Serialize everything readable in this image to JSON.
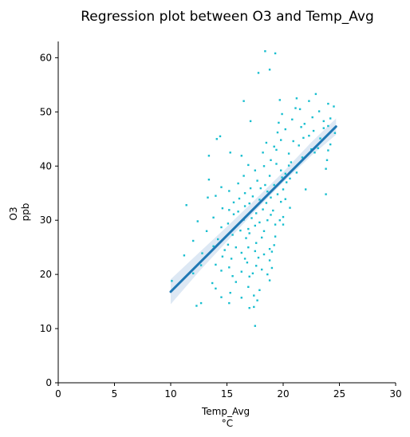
{
  "chart_data": {
    "type": "scatter",
    "title": "Regression plot between O3 and Temp_Avg",
    "xlabel": [
      "Temp_Avg",
      "°C"
    ],
    "ylabel": [
      "O3",
      "ppb"
    ],
    "xlim": [
      0,
      30
    ],
    "ylim": [
      0,
      63
    ],
    "xticks": [
      "0",
      "5",
      "10",
      "15",
      "20",
      "25",
      "30"
    ],
    "yticks": [
      "0",
      "10",
      "20",
      "30",
      "40",
      "50",
      "60"
    ],
    "grid": false,
    "point_color": "#17becf",
    "line_color": "#1f77b4",
    "band_color": "#c6d8ec",
    "regression": {
      "x": [
        10.0,
        24.7
      ],
      "y": [
        16.8,
        47.3
      ]
    },
    "confidence_band": {
      "x": [
        10.0,
        12.5,
        15.0,
        17.5,
        20.0,
        22.5,
        24.7
      ],
      "lower": [
        14.5,
        20.5,
        26.1,
        31.7,
        37.0,
        41.9,
        45.8
      ],
      "upper": [
        19.1,
        24.0,
        28.8,
        33.8,
        38.9,
        44.4,
        48.8
      ]
    },
    "points": [
      [
        18.4,
        61.2
      ],
      [
        19.3,
        60.8
      ],
      [
        18.8,
        57.8
      ],
      [
        17.8,
        57.2
      ],
      [
        16.5,
        52.0
      ],
      [
        19.7,
        52.2
      ],
      [
        22.9,
        53.3
      ],
      [
        21.2,
        52.5
      ],
      [
        22.3,
        52.0
      ],
      [
        24.0,
        51.5
      ],
      [
        24.5,
        51.0
      ],
      [
        21.5,
        50.5
      ],
      [
        21.1,
        50.7
      ],
      [
        23.2,
        50.1
      ],
      [
        19.9,
        49.6
      ],
      [
        22.6,
        49.0
      ],
      [
        24.2,
        48.8
      ],
      [
        20.8,
        48.6
      ],
      [
        23.6,
        48.3
      ],
      [
        17.1,
        48.3
      ],
      [
        19.6,
        48.0
      ],
      [
        21.9,
        47.8
      ],
      [
        24.0,
        47.4
      ],
      [
        23.6,
        47.0
      ],
      [
        20.2,
        46.8
      ],
      [
        22.7,
        46.5
      ],
      [
        19.5,
        46.2
      ],
      [
        24.6,
        46.1
      ],
      [
        22.3,
        45.6
      ],
      [
        14.4,
        45.5
      ],
      [
        14.1,
        45.0
      ],
      [
        21.8,
        45.2
      ],
      [
        23.3,
        45.1
      ],
      [
        19.8,
        44.8
      ],
      [
        18.5,
        44.3
      ],
      [
        24.2,
        44.0
      ],
      [
        21.4,
        43.8
      ],
      [
        19.2,
        43.6
      ],
      [
        23.1,
        43.3
      ],
      [
        22.5,
        43.1
      ],
      [
        24.0,
        42.9
      ],
      [
        18.2,
        42.5
      ],
      [
        15.3,
        42.5
      ],
      [
        20.5,
        42.3
      ],
      [
        13.4,
        41.9
      ],
      [
        16.3,
        41.9
      ],
      [
        21.7,
        41.6
      ],
      [
        18.9,
        41.1
      ],
      [
        23.9,
        41.1
      ],
      [
        19.4,
        40.4
      ],
      [
        20.7,
        40.7
      ],
      [
        16.9,
        40.2
      ],
      [
        18.3,
        40.0
      ],
      [
        23.8,
        39.5
      ],
      [
        17.5,
        39.2
      ],
      [
        19.8,
        39.2
      ],
      [
        21.2,
        38.8
      ],
      [
        20.2,
        38.6
      ],
      [
        18.8,
        38.2
      ],
      [
        16.5,
        38.2
      ],
      [
        19.9,
        37.9
      ],
      [
        20.6,
        37.7
      ],
      [
        13.4,
        37.5
      ],
      [
        17.7,
        37.3
      ],
      [
        20.3,
        37.0
      ],
      [
        16.0,
        36.8
      ],
      [
        18.4,
        36.5
      ],
      [
        19.2,
        36.5
      ],
      [
        14.5,
        36.1
      ],
      [
        17.1,
        35.9
      ],
      [
        20.0,
        35.7
      ],
      [
        22.0,
        35.7
      ],
      [
        15.2,
        35.4
      ],
      [
        18.6,
        35.3
      ],
      [
        16.6,
        35.0
      ],
      [
        19.5,
        34.8
      ],
      [
        23.8,
        34.8
      ],
      [
        14.0,
        34.5
      ],
      [
        17.3,
        34.4
      ],
      [
        18.9,
        34.2
      ],
      [
        13.3,
        34.2
      ],
      [
        16.1,
        34.0
      ],
      [
        17.9,
        33.8
      ],
      [
        20.2,
        33.9
      ],
      [
        19.8,
        33.4
      ],
      [
        15.6,
        33.3
      ],
      [
        18.5,
        33.2
      ],
      [
        17.0,
        33.1
      ],
      [
        11.4,
        32.8
      ],
      [
        16.6,
        32.6
      ],
      [
        20.6,
        32.3
      ],
      [
        14.6,
        32.2
      ],
      [
        18.2,
        32.0
      ],
      [
        15.2,
        31.9
      ],
      [
        19.1,
        31.8
      ],
      [
        16.0,
        31.6
      ],
      [
        17.6,
        31.3
      ],
      [
        15.6,
        31.1
      ],
      [
        18.9,
        31.0
      ],
      [
        20.0,
        30.6
      ],
      [
        13.8,
        30.5
      ],
      [
        17.2,
        30.4
      ],
      [
        16.5,
        30.1
      ],
      [
        18.6,
        30.0
      ],
      [
        19.7,
        30.0
      ],
      [
        12.4,
        29.8
      ],
      [
        17.9,
        29.6
      ],
      [
        15.1,
        29.4
      ],
      [
        19.3,
        29.2
      ],
      [
        20.0,
        29.2
      ],
      [
        17.5,
        29.0
      ],
      [
        14.5,
        28.7
      ],
      [
        16.9,
        28.4
      ],
      [
        16.2,
        28.1
      ],
      [
        18.3,
        28.0
      ],
      [
        13.2,
        28.0
      ],
      [
        17.0,
        27.6
      ],
      [
        15.5,
        27.3
      ],
      [
        19.3,
        27.0
      ],
      [
        18.1,
        26.8
      ],
      [
        16.7,
        26.7
      ],
      [
        14.2,
        26.5
      ],
      [
        12.0,
        26.2
      ],
      [
        17.6,
        25.8
      ],
      [
        15.1,
        25.5
      ],
      [
        19.2,
        25.4
      ],
      [
        13.8,
        25.2
      ],
      [
        15.8,
        25.0
      ],
      [
        16.9,
        25.0
      ],
      [
        18.8,
        24.7
      ],
      [
        14.8,
        24.5
      ],
      [
        17.5,
        24.3
      ],
      [
        19.0,
        24.2
      ],
      [
        16.3,
        24.0
      ],
      [
        12.8,
        23.9
      ],
      [
        18.3,
        23.7
      ],
      [
        11.2,
        23.5
      ],
      [
        14.6,
        23.3
      ],
      [
        17.8,
        23.1
      ],
      [
        15.4,
        22.9
      ],
      [
        18.8,
        22.6
      ],
      [
        16.8,
        22.2
      ],
      [
        14.0,
        21.8
      ],
      [
        12.7,
        21.7
      ],
      [
        17.6,
        21.6
      ],
      [
        15.2,
        21.3
      ],
      [
        19.0,
        21.2
      ],
      [
        18.1,
        20.9
      ],
      [
        14.5,
        20.7
      ],
      [
        16.3,
        20.5
      ],
      [
        17.3,
        20.2
      ],
      [
        12.0,
        20.2
      ],
      [
        18.6,
        20.0
      ],
      [
        15.5,
        19.7
      ],
      [
        17.0,
        19.6
      ],
      [
        10.1,
        18.8
      ],
      [
        18.8,
        18.9
      ],
      [
        13.7,
        18.4
      ],
      [
        16.9,
        17.7
      ],
      [
        14.0,
        17.4
      ],
      [
        17.9,
        17.1
      ],
      [
        15.3,
        16.6
      ],
      [
        17.4,
        16.1
      ],
      [
        16.3,
        15.7
      ],
      [
        14.5,
        15.8
      ],
      [
        17.7,
        15.2
      ],
      [
        12.7,
        14.7
      ],
      [
        15.2,
        14.7
      ],
      [
        12.3,
        14.2
      ],
      [
        17.4,
        14.0
      ],
      [
        17.0,
        13.8
      ],
      [
        17.5,
        10.5
      ],
      [
        15.8,
        18.6
      ],
      [
        16.6,
        22.9
      ],
      [
        19.4,
        43.0
      ],
      [
        20.9,
        44.6
      ],
      [
        21.6,
        47.2
      ],
      [
        22.8,
        42.5
      ],
      [
        18.0,
        35.9
      ],
      [
        20.5,
        40.1
      ]
    ]
  }
}
